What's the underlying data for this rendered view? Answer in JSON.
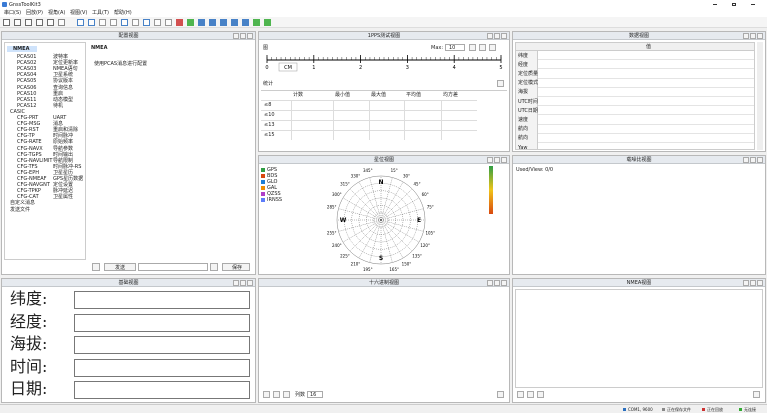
{
  "window": {
    "title": "GnssToolKit3"
  },
  "menu": [
    "串口(S)",
    "回放(P)",
    "视角(A)",
    "视图(V)",
    "工具(T)",
    "帮助(H)"
  ],
  "config_view": {
    "title": "配置视图",
    "root": "NMEA",
    "pcas": [
      {
        "cmd": "PCAS01",
        "desc": "波特率"
      },
      {
        "cmd": "PCAS02",
        "desc": "定位更新率"
      },
      {
        "cmd": "PCAS03",
        "desc": "NMEA语句"
      },
      {
        "cmd": "PCAS04",
        "desc": "卫星系统"
      },
      {
        "cmd": "PCAS05",
        "desc": "协议版本"
      },
      {
        "cmd": "PCAS06",
        "desc": "查询信息"
      },
      {
        "cmd": "PCAS10",
        "desc": "重启"
      },
      {
        "cmd": "PCAS11",
        "desc": "动态模型"
      },
      {
        "cmd": "PCAS12",
        "desc": "待机"
      }
    ],
    "casic": "CASIC",
    "cfg": [
      {
        "cmd": "CFG-PRT",
        "desc": "UART"
      },
      {
        "cmd": "CFG-MSG",
        "desc": "消息"
      },
      {
        "cmd": "CFG-RST",
        "desc": "重启和清除"
      },
      {
        "cmd": "CFG-TP",
        "desc": "时间脉冲"
      },
      {
        "cmd": "CFG-RATE",
        "desc": "原始频率"
      },
      {
        "cmd": "CFG-NAVX",
        "desc": "导航参数"
      },
      {
        "cmd": "CFG-TGPS",
        "desc": "时间输出"
      },
      {
        "cmd": "CFG-NAVLIMIT",
        "desc": "导航限制"
      },
      {
        "cmd": "CFG-TFS",
        "desc": "时间脉冲-RS"
      },
      {
        "cmd": "CFG-EPH",
        "desc": "卫星星历"
      },
      {
        "cmd": "CFG-NMEAF",
        "desc": "GPS星历数据"
      },
      {
        "cmd": "CFG-NAVGNT",
        "desc": "定位设置"
      },
      {
        "cmd": "CFG-TPKP",
        "desc": "脉冲延迟"
      },
      {
        "cmd": "CFG-CAT",
        "desc": "卫星属性"
      }
    ],
    "extra": [
      "自定义消息",
      "发送文件"
    ],
    "form_title": "NMEA",
    "form_hint": "使用PCAS消息进行配置",
    "send": "发送",
    "save": "保存"
  },
  "pps_view": {
    "title": "1PPS测试视图",
    "plot_label": "图",
    "max_label": "Max:",
    "max_value": "10",
    "unit": "CM",
    "axis_ticks": [
      0,
      1,
      2,
      3,
      4,
      5
    ],
    "stats_label": "统计",
    "columns": [
      "计数",
      "最小值",
      "最大值",
      "平均值",
      "均方差"
    ],
    "rows": [
      "≤8",
      "≤10",
      "≤13",
      "≤15"
    ]
  },
  "data_view": {
    "title": "数据视图",
    "header": "值",
    "rows": [
      "纬度",
      "经度",
      "定位质量",
      "定位模式",
      "海拔",
      "UTC时间",
      "UTC日期",
      "速度",
      "航向",
      "航向",
      "Yaw"
    ]
  },
  "sky_view": {
    "title": "星位视图",
    "legend": [
      {
        "name": "GPS",
        "color": "#2f9e44"
      },
      {
        "name": "BDS",
        "color": "#d9480f"
      },
      {
        "name": "GLO",
        "color": "#1c7ed6"
      },
      {
        "name": "GAL",
        "color": "#f08c00"
      },
      {
        "name": "QZSS",
        "color": "#ae3ec9"
      },
      {
        "name": "IRNSS",
        "color": "#5c7cfa"
      }
    ],
    "directions": [
      {
        "value": 0,
        "label": "N"
      },
      {
        "value": 90,
        "label": "E"
      },
      {
        "value": 180,
        "label": "S"
      },
      {
        "value": 270,
        "label": "W"
      }
    ],
    "ticks": [
      {
        "value": 15,
        "label": "15°"
      },
      {
        "value": 30,
        "label": "30°"
      },
      {
        "value": 45,
        "label": "45°"
      },
      {
        "value": 60,
        "label": "60°"
      },
      {
        "value": 75,
        "label": "75°"
      },
      {
        "value": 105,
        "label": "105°"
      },
      {
        "value": 120,
        "label": "120°"
      },
      {
        "value": 135,
        "label": "135°"
      },
      {
        "value": 150,
        "label": "150°"
      },
      {
        "value": 165,
        "label": "165°"
      },
      {
        "value": 195,
        "label": "195°"
      },
      {
        "value": 210,
        "label": "210°"
      },
      {
        "value": 225,
        "label": "225°"
      },
      {
        "value": 240,
        "label": "240°"
      },
      {
        "value": 255,
        "label": "255°"
      },
      {
        "value": 285,
        "label": "285°"
      },
      {
        "value": 300,
        "label": "300°"
      },
      {
        "value": 315,
        "label": "315°"
      },
      {
        "value": 330,
        "label": "330°"
      },
      {
        "value": 345,
        "label": "345°"
      }
    ]
  },
  "cnr_view": {
    "title": "载噪比视图",
    "used_view": "Used/View: 0/0"
  },
  "basic_view": {
    "title": "基础视图",
    "fields": [
      "纬度:",
      "经度:",
      "海拔:",
      "时间:",
      "日期:"
    ]
  },
  "hex_view": {
    "title": "十六进制视图",
    "columns_label": "列数",
    "columns_value": "16"
  },
  "nmea_view": {
    "title": "NMEA视图"
  },
  "status": [
    "COM1, 9600",
    "正在保存文件",
    "正在回放",
    "无连接"
  ]
}
